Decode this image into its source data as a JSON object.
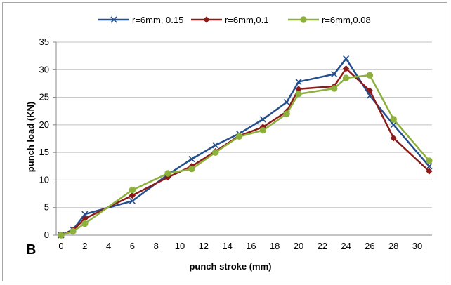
{
  "chart_data": {
    "type": "line",
    "panel_label": "B",
    "xlabel": "punch stroke (mm)",
    "ylabel": "punch load (KN)",
    "xlim": [
      0,
      31
    ],
    "ylim": [
      0,
      35
    ],
    "x_ticks": [
      0,
      2,
      4,
      6,
      8,
      10,
      12,
      14,
      16,
      18,
      20,
      22,
      24,
      26,
      28,
      30
    ],
    "y_ticks": [
      0,
      5,
      10,
      15,
      20,
      25,
      30,
      35
    ],
    "grid": "horizontal",
    "legend_position": "top",
    "series": [
      {
        "name": "r=6mm, 0.15",
        "color": "#244f8e",
        "marker": "x",
        "points": [
          [
            0,
            0
          ],
          [
            1,
            1
          ],
          [
            2,
            3.8
          ],
          [
            6,
            6.2
          ],
          [
            9,
            11
          ],
          [
            11,
            13.8
          ],
          [
            13,
            16.3
          ],
          [
            15,
            18.4
          ],
          [
            17,
            21
          ],
          [
            19,
            24.1
          ],
          [
            20,
            27.8
          ],
          [
            23,
            29.2
          ],
          [
            24,
            32
          ],
          [
            26,
            25.3
          ],
          [
            28,
            20
          ],
          [
            31,
            12.5
          ]
        ]
      },
      {
        "name": "r=6mm,0.1",
        "color": "#8b1a1a",
        "marker": "diamond",
        "points": [
          [
            0,
            0
          ],
          [
            1,
            0.9
          ],
          [
            2,
            3
          ],
          [
            6,
            7.2
          ],
          [
            9,
            10.5
          ],
          [
            11,
            12.5
          ],
          [
            13,
            15.2
          ],
          [
            15,
            18
          ],
          [
            17,
            19.6
          ],
          [
            19,
            22.4
          ],
          [
            20,
            26.5
          ],
          [
            23,
            27
          ],
          [
            24,
            30.2
          ],
          [
            26,
            26.2
          ],
          [
            28,
            17.6
          ],
          [
            31,
            11.6
          ]
        ]
      },
      {
        "name": "r=6mm,0.08",
        "color": "#8db03c",
        "marker": "circle",
        "points": [
          [
            0,
            0
          ],
          [
            1,
            0.7
          ],
          [
            2,
            2.1
          ],
          [
            6,
            8.2
          ],
          [
            9,
            11.2
          ],
          [
            11,
            12
          ],
          [
            13,
            15
          ],
          [
            15,
            17.9
          ],
          [
            17,
            19
          ],
          [
            19,
            22
          ],
          [
            20,
            25.6
          ],
          [
            23,
            26.6
          ],
          [
            24,
            28.5
          ],
          [
            26,
            29
          ],
          [
            28,
            21
          ],
          [
            31,
            13.5
          ]
        ]
      }
    ]
  }
}
